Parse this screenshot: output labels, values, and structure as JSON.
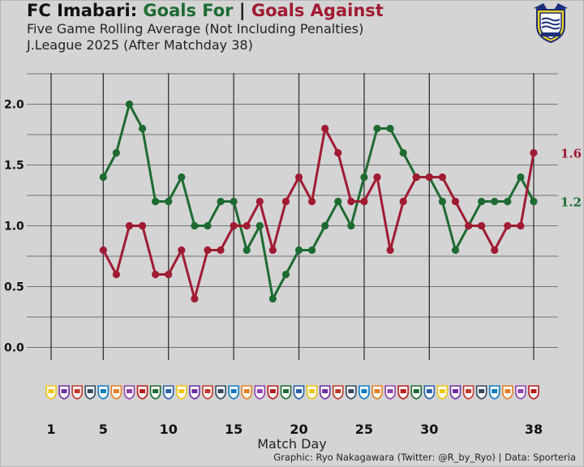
{
  "header": {
    "title_prefix": "FC Imabari:",
    "title_for": "Goals For",
    "title_sep": "|",
    "title_against": "Goals Against",
    "subtitle1": "Five Game Rolling Average (Not Including Penalties)",
    "subtitle2": "J.League 2025 (After Matchday 38)"
  },
  "colors": {
    "goals_for": "#1e6b32",
    "goals_against": "#a01b32",
    "background": "#d4d4d4",
    "grid": "#555555"
  },
  "icons": {
    "club_crest": "fc-imabari-crest-icon",
    "opponent_badges": "opponent-team-badge-icon"
  },
  "footer": {
    "xlabel": "Match Day",
    "credit": "Graphic: Ryo Nakagawara (Twitter: @R_by_Ryo) | Data: Sporteria"
  },
  "chart_data": {
    "type": "line",
    "title": "FC Imabari: Goals For | Goals Against",
    "subtitle": "Five Game Rolling Average (Not Including Penalties)",
    "xlabel": "Match Day",
    "ylabel": "",
    "xlim": [
      1,
      38
    ],
    "ylim": [
      0,
      2.3
    ],
    "x_ticks": [
      1,
      5,
      10,
      15,
      20,
      25,
      30,
      38
    ],
    "y_ticks": [
      "0.0",
      "0.5",
      "1.0",
      "1.5",
      "2.0"
    ],
    "grid": true,
    "x": [
      5,
      6,
      7,
      8,
      9,
      10,
      11,
      12,
      13,
      14,
      15,
      16,
      17,
      18,
      19,
      20,
      21,
      22,
      23,
      24,
      25,
      26,
      27,
      28,
      29,
      30,
      31,
      32,
      33,
      34,
      35,
      36,
      37,
      38
    ],
    "series": [
      {
        "name": "Goals For",
        "color": "#1e6b32",
        "values": [
          1.4,
          1.6,
          2.0,
          1.8,
          1.2,
          1.2,
          1.4,
          1.0,
          1.0,
          1.2,
          1.2,
          0.8,
          1.0,
          0.4,
          0.6,
          0.8,
          0.8,
          1.0,
          1.2,
          1.0,
          1.4,
          1.8,
          1.8,
          1.6,
          1.4,
          1.4,
          1.2,
          0.8,
          1.0,
          1.2,
          1.2,
          1.2,
          1.4,
          1.2
        ],
        "end_label": "1.2"
      },
      {
        "name": "Goals Against",
        "color": "#a01b32",
        "values": [
          0.8,
          0.6,
          1.0,
          1.0,
          0.6,
          0.6,
          0.8,
          0.4,
          0.8,
          0.8,
          1.0,
          1.0,
          1.2,
          0.8,
          1.2,
          1.4,
          1.2,
          1.8,
          1.6,
          1.2,
          1.2,
          1.4,
          0.8,
          1.2,
          1.4,
          1.4,
          1.4,
          1.2,
          1.0,
          1.0,
          0.8,
          1.0,
          1.0,
          1.6
        ],
        "end_label": "1.6"
      }
    ]
  }
}
